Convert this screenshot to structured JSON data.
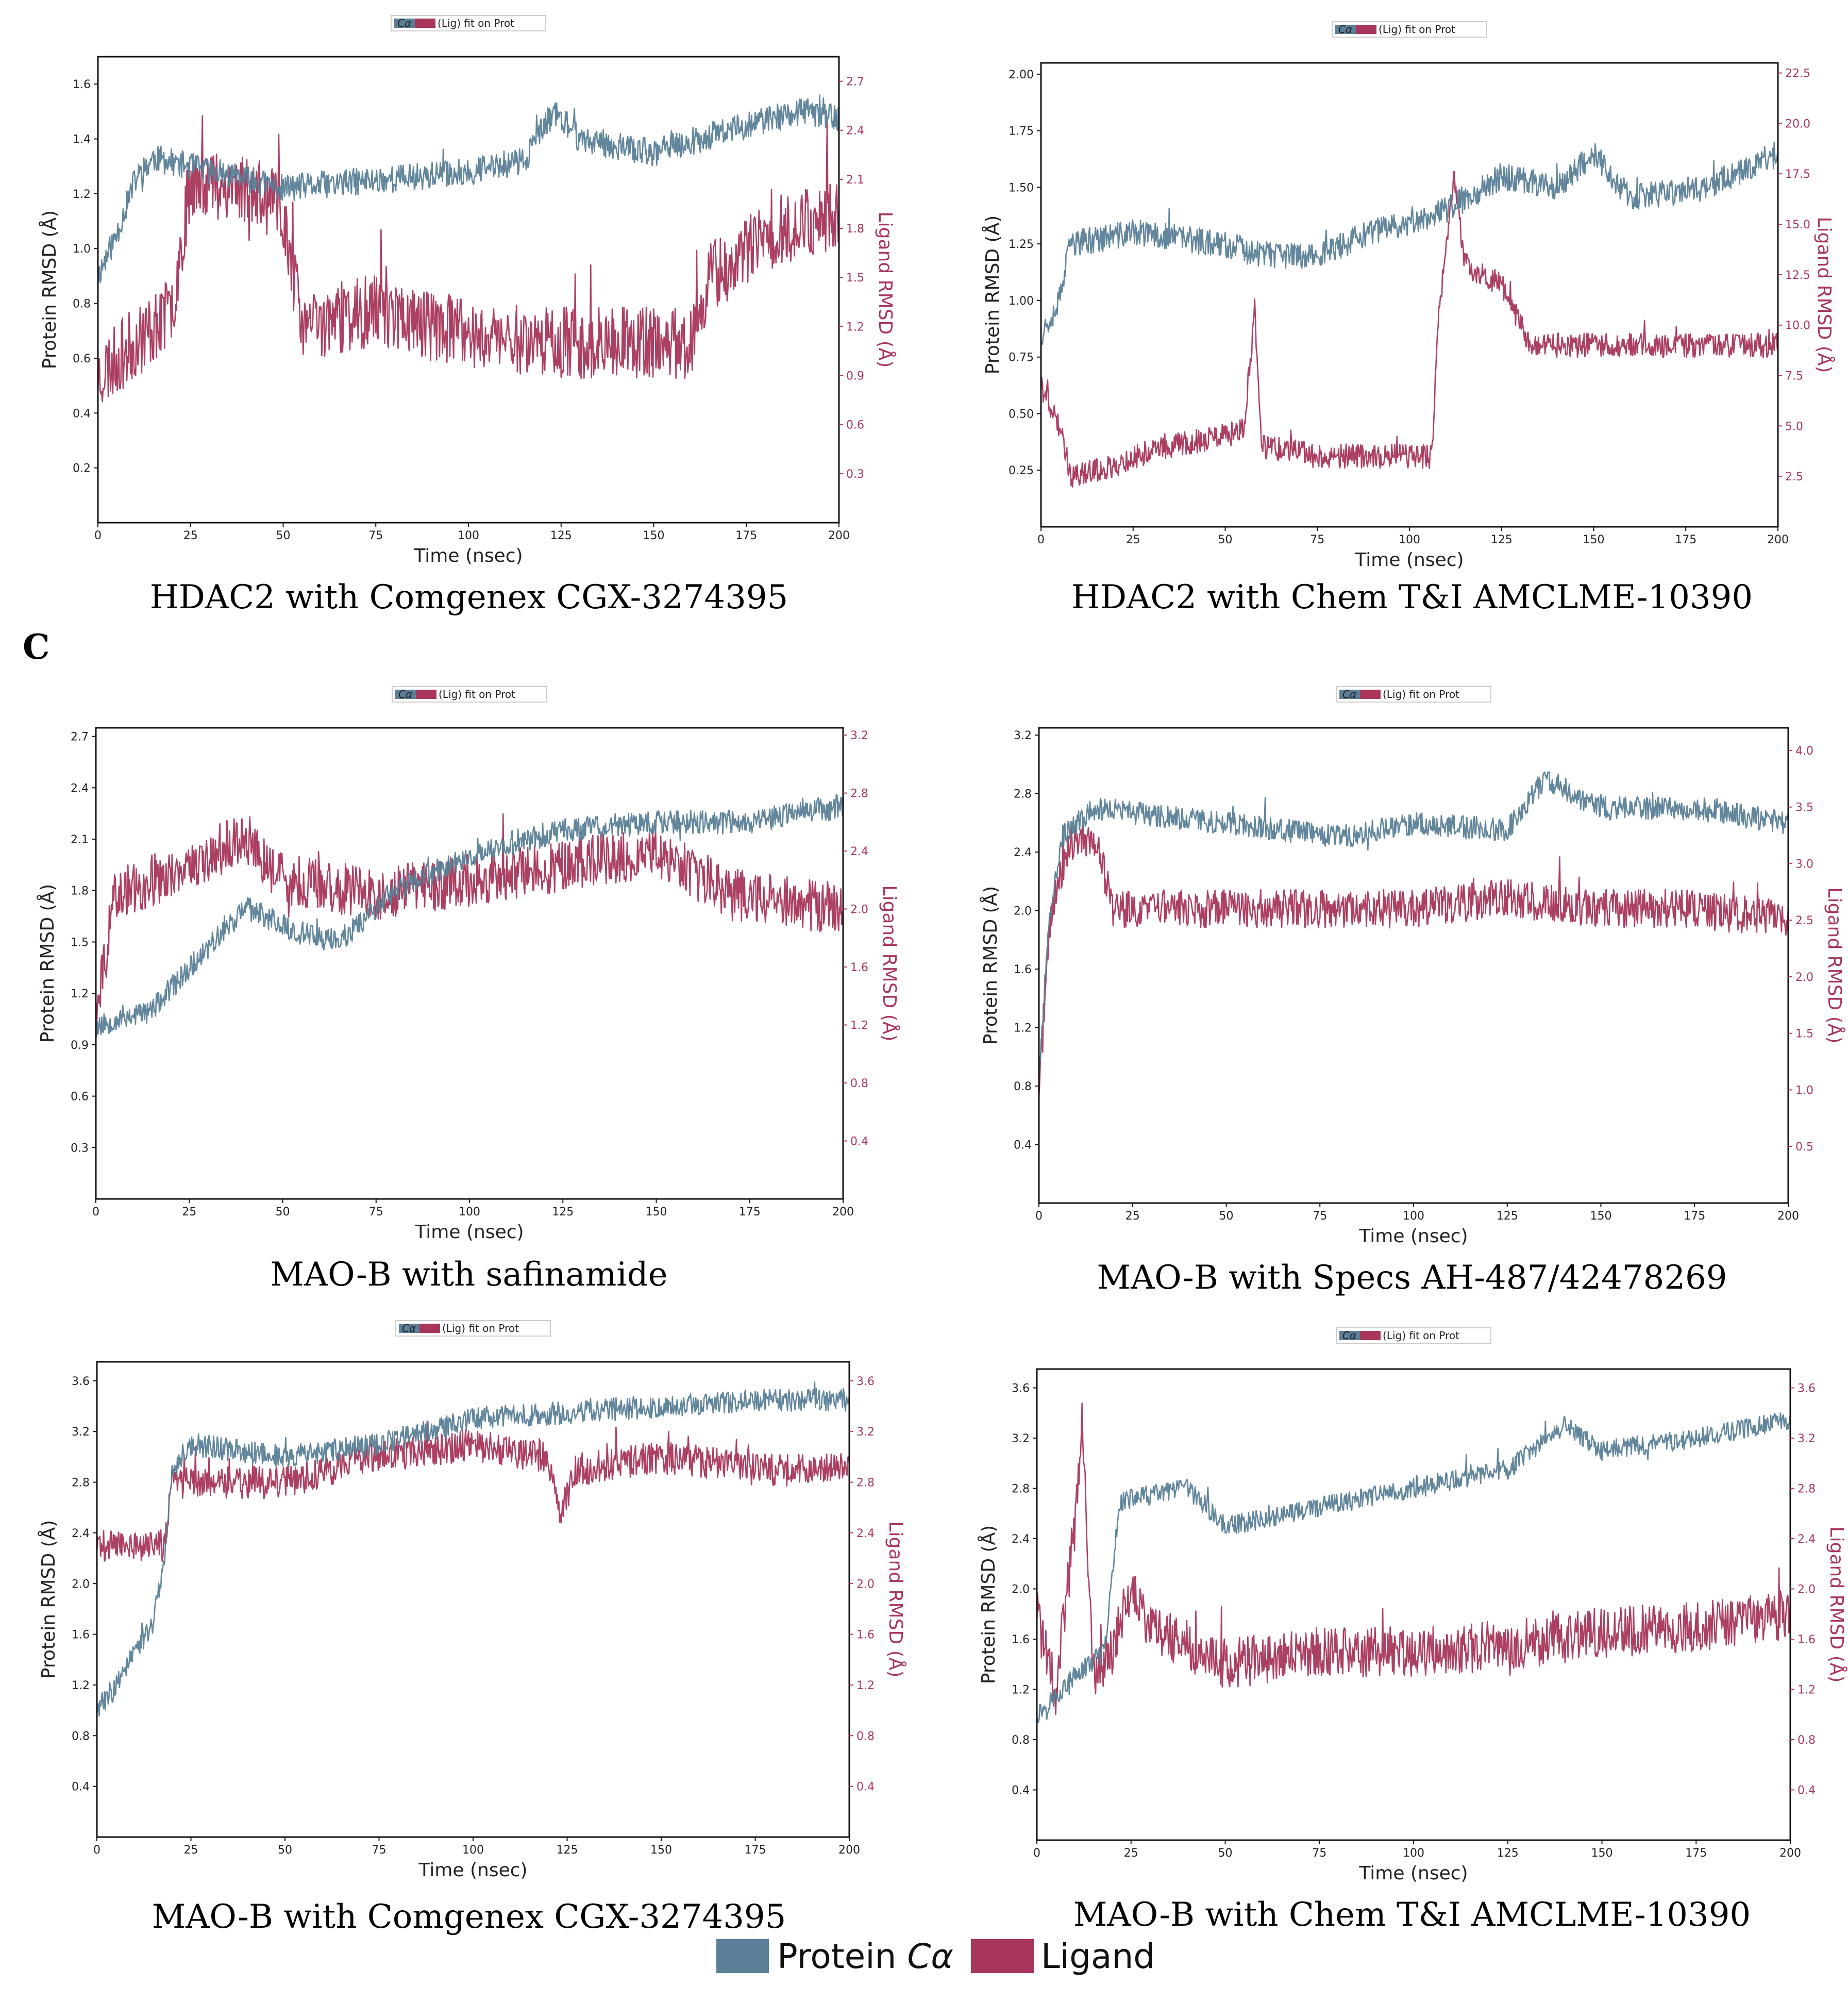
{
  "panel_letter": "C",
  "colors": {
    "protein": "#5a7f97",
    "ligand": "#a8365a"
  },
  "bottom_legend": {
    "protein_label": "Protein",
    "protein_sub": "Cα",
    "ligand_label": "Ligand"
  },
  "chart_data": [
    {
      "type": "line",
      "caption": "HDAC2 with Comgenex CGX-3274395",
      "legend_text": "(Lig) fit on Prot",
      "legend_sub": "Cα",
      "xlabel": "Time (nsec)",
      "ylabel": "Protein RMSD (Å)",
      "y2label": "Ligand RMSD (Å)",
      "xlim": [
        0,
        200
      ],
      "xticks": [
        0,
        25,
        50,
        75,
        100,
        125,
        150,
        175,
        200
      ],
      "ylim": [
        0,
        1.7
      ],
      "yticks": [
        "0.2",
        "0.4",
        "0.6",
        "0.8",
        "1.0",
        "1.2",
        "1.4",
        "1.6"
      ],
      "y2lim": [
        0,
        2.85
      ],
      "y2ticks": [
        "0.3",
        "0.6",
        "0.9",
        "1.2",
        "1.5",
        "1.8",
        "2.1",
        "2.4",
        "2.7"
      ],
      "series": [
        {
          "name": "Protein Cα",
          "axis": "left",
          "noise": 0.05,
          "seed": 11,
          "keypoints": [
            [
              0,
              0.9
            ],
            [
              5,
              1.05
            ],
            [
              10,
              1.25
            ],
            [
              15,
              1.33
            ],
            [
              25,
              1.3
            ],
            [
              50,
              1.22
            ],
            [
              75,
              1.25
            ],
            [
              100,
              1.28
            ],
            [
              115,
              1.32
            ],
            [
              123,
              1.5
            ],
            [
              130,
              1.4
            ],
            [
              150,
              1.35
            ],
            [
              175,
              1.45
            ],
            [
              190,
              1.5
            ],
            [
              200,
              1.48
            ]
          ]
        },
        {
          "name": "Ligand",
          "axis": "right",
          "noise": 0.22,
          "seed": 23,
          "keypoints": [
            [
              0,
              0.9
            ],
            [
              10,
              1.1
            ],
            [
              20,
              1.3
            ],
            [
              25,
              2.1
            ],
            [
              40,
              2.05
            ],
            [
              50,
              1.9
            ],
            [
              55,
              1.2
            ],
            [
              75,
              1.3
            ],
            [
              100,
              1.15
            ],
            [
              130,
              1.1
            ],
            [
              160,
              1.1
            ],
            [
              165,
              1.5
            ],
            [
              185,
              1.8
            ],
            [
              200,
              1.9
            ]
          ]
        }
      ]
    },
    {
      "type": "line",
      "caption": "HDAC2 with Chem T&I AMCLME-10390",
      "legend_text": "(Lig) fit on Prot",
      "legend_sub": "Cα",
      "xlabel": "Time (nsec)",
      "ylabel": "Protein RMSD (Å)",
      "y2label": "Ligand RMSD (Å)",
      "xlim": [
        0,
        200
      ],
      "xticks": [
        0,
        25,
        50,
        75,
        100,
        125,
        150,
        175,
        200
      ],
      "ylim": [
        0,
        2.05
      ],
      "yticks": [
        "0.25",
        "0.50",
        "0.75",
        "1.00",
        "1.25",
        "1.50",
        "1.75",
        "2.00"
      ],
      "y2lim": [
        0,
        23
      ],
      "y2ticks": [
        "2.5",
        "5.0",
        "7.5",
        "10.0",
        "12.5",
        "15.0",
        "17.5",
        "20.0",
        "22.5"
      ],
      "series": [
        {
          "name": "Protein Cα",
          "axis": "left",
          "noise": 0.06,
          "seed": 37,
          "keypoints": [
            [
              0,
              0.85
            ],
            [
              5,
              1.0
            ],
            [
              8,
              1.25
            ],
            [
              25,
              1.3
            ],
            [
              50,
              1.25
            ],
            [
              60,
              1.2
            ],
            [
              75,
              1.2
            ],
            [
              90,
              1.3
            ],
            [
              110,
              1.4
            ],
            [
              125,
              1.55
            ],
            [
              140,
              1.5
            ],
            [
              150,
              1.65
            ],
            [
              160,
              1.45
            ],
            [
              180,
              1.5
            ],
            [
              200,
              1.65
            ]
          ]
        },
        {
          "name": "Ligand",
          "axis": "right",
          "noise": 0.6,
          "seed": 41,
          "keypoints": [
            [
              0,
              7.0
            ],
            [
              5,
              5.0
            ],
            [
              8,
              2.5
            ],
            [
              20,
              3.0
            ],
            [
              30,
              3.8
            ],
            [
              50,
              4.5
            ],
            [
              55,
              4.8
            ],
            [
              58,
              10.5
            ],
            [
              60,
              4.0
            ],
            [
              75,
              3.5
            ],
            [
              100,
              3.5
            ],
            [
              106,
              3.5
            ],
            [
              108,
              10.5
            ],
            [
              112,
              17.5
            ],
            [
              115,
              13.0
            ],
            [
              125,
              12.0
            ],
            [
              133,
              9.0
            ],
            [
              150,
              9.0
            ],
            [
              175,
              9.0
            ],
            [
              200,
              9.0
            ]
          ]
        }
      ]
    },
    {
      "type": "line",
      "caption": "MAO-B with safinamide",
      "legend_text": "(Lig) fit on Prot",
      "legend_sub": "Cα",
      "xlabel": "Time (nsec)",
      "ylabel": "Protein RMSD (Å)",
      "y2label": "Ligand RMSD (Å)",
      "xlim": [
        0,
        200
      ],
      "xticks": [
        0,
        25,
        50,
        75,
        100,
        125,
        150,
        175,
        200
      ],
      "ylim": [
        0,
        2.75
      ],
      "yticks": [
        "0.3",
        "0.6",
        "0.9",
        "1.2",
        "1.5",
        "1.8",
        "2.1",
        "2.4",
        "2.7"
      ],
      "y2lim": [
        0,
        3.25
      ],
      "y2ticks": [
        "0.4",
        "0.8",
        "1.2",
        "1.6",
        "2.0",
        "2.4",
        "2.8",
        "3.2"
      ],
      "series": [
        {
          "name": "Protein Cα",
          "axis": "left",
          "noise": 0.07,
          "seed": 53,
          "keypoints": [
            [
              0,
              1.0
            ],
            [
              5,
              1.05
            ],
            [
              15,
              1.1
            ],
            [
              25,
              1.35
            ],
            [
              40,
              1.7
            ],
            [
              55,
              1.55
            ],
            [
              65,
              1.5
            ],
            [
              80,
              1.8
            ],
            [
              100,
              2.0
            ],
            [
              125,
              2.15
            ],
            [
              150,
              2.2
            ],
            [
              175,
              2.2
            ],
            [
              200,
              2.3
            ]
          ]
        },
        {
          "name": "Ligand",
          "axis": "right",
          "noise": 0.18,
          "seed": 59,
          "keypoints": [
            [
              0,
              1.2
            ],
            [
              5,
              2.1
            ],
            [
              25,
              2.3
            ],
            [
              40,
              2.5
            ],
            [
              50,
              2.2
            ],
            [
              75,
              2.1
            ],
            [
              100,
              2.2
            ],
            [
              125,
              2.3
            ],
            [
              150,
              2.4
            ],
            [
              170,
              2.1
            ],
            [
              200,
              2.0
            ]
          ]
        }
      ]
    },
    {
      "type": "line",
      "caption": "MAO-B with Specs AH-487/42478269",
      "legend_text": "(Lig) fit on Prot",
      "legend_sub": "Cα",
      "xlabel": "Time (nsec)",
      "ylabel": "Protein RMSD (Å)",
      "y2label": "Ligand RMSD (Å)",
      "xlim": [
        0,
        200
      ],
      "xticks": [
        0,
        25,
        50,
        75,
        100,
        125,
        150,
        175,
        200
      ],
      "ylim": [
        0,
        3.25
      ],
      "yticks": [
        "0.4",
        "0.8",
        "1.2",
        "1.6",
        "2.0",
        "2.4",
        "2.8",
        "3.2"
      ],
      "y2lim": [
        0,
        4.2
      ],
      "y2ticks": [
        "0.5",
        "1.0",
        "1.5",
        "2.0",
        "2.5",
        "3.0",
        "3.5",
        "4.0"
      ],
      "series": [
        {
          "name": "Protein Cα",
          "axis": "left",
          "noise": 0.08,
          "seed": 67,
          "keypoints": [
            [
              0,
              0.9
            ],
            [
              3,
              2.0
            ],
            [
              6,
              2.5
            ],
            [
              15,
              2.7
            ],
            [
              50,
              2.6
            ],
            [
              80,
              2.5
            ],
            [
              100,
              2.6
            ],
            [
              125,
              2.55
            ],
            [
              135,
              2.9
            ],
            [
              150,
              2.7
            ],
            [
              175,
              2.7
            ],
            [
              200,
              2.6
            ]
          ]
        },
        {
          "name": "Ligand",
          "axis": "right",
          "noise": 0.17,
          "seed": 71,
          "keypoints": [
            [
              0,
              1.0
            ],
            [
              3,
              2.5
            ],
            [
              8,
              3.2
            ],
            [
              15,
              3.2
            ],
            [
              20,
              2.6
            ],
            [
              50,
              2.6
            ],
            [
              75,
              2.6
            ],
            [
              100,
              2.6
            ],
            [
              125,
              2.7
            ],
            [
              150,
              2.6
            ],
            [
              175,
              2.6
            ],
            [
              200,
              2.5
            ]
          ]
        }
      ]
    },
    {
      "type": "line",
      "caption": "MAO-B with Comgenex CGX-3274395",
      "legend_text": "(Lig) fit on Prot",
      "legend_sub": "Cα",
      "xlabel": "Time (nsec)",
      "ylabel": "Protein RMSD (Å)",
      "y2label": "Ligand RMSD (Å)",
      "xlim": [
        0,
        200
      ],
      "xticks": [
        0,
        25,
        50,
        75,
        100,
        125,
        150,
        175,
        200
      ],
      "ylim": [
        0,
        3.75
      ],
      "yticks": [
        "0.4",
        "0.8",
        "1.2",
        "1.6",
        "2.0",
        "2.4",
        "2.8",
        "3.2",
        "3.6"
      ],
      "y2lim": [
        0,
        3.75
      ],
      "y2ticks": [
        "0.4",
        "0.8",
        "1.2",
        "1.6",
        "2.0",
        "2.4",
        "2.8",
        "3.2",
        "3.6"
      ],
      "series": [
        {
          "name": "Protein Cα",
          "axis": "left",
          "noise": 0.09,
          "seed": 83,
          "keypoints": [
            [
              0,
              1.0
            ],
            [
              5,
              1.2
            ],
            [
              15,
              1.7
            ],
            [
              18,
              2.2
            ],
            [
              20,
              2.9
            ],
            [
              25,
              3.1
            ],
            [
              50,
              3.0
            ],
            [
              75,
              3.1
            ],
            [
              100,
              3.3
            ],
            [
              125,
              3.35
            ],
            [
              150,
              3.4
            ],
            [
              175,
              3.45
            ],
            [
              200,
              3.45
            ]
          ]
        },
        {
          "name": "Ligand",
          "axis": "right",
          "noise": 0.13,
          "seed": 89,
          "keypoints": [
            [
              0,
              2.3
            ],
            [
              18,
              2.3
            ],
            [
              20,
              2.8
            ],
            [
              50,
              2.8
            ],
            [
              75,
              3.0
            ],
            [
              100,
              3.1
            ],
            [
              120,
              3.0
            ],
            [
              123,
              2.5
            ],
            [
              127,
              2.9
            ],
            [
              150,
              3.0
            ],
            [
              175,
              2.9
            ],
            [
              200,
              2.9
            ]
          ]
        }
      ]
    },
    {
      "type": "line",
      "caption": "MAO-B with Chem T&I AMCLME-10390",
      "legend_text": "(Lig) fit on Prot",
      "legend_sub": "Cα",
      "xlabel": "Time (nsec)",
      "ylabel": "Protein RMSD (Å)",
      "y2label": "Ligand RMSD (Å)",
      "xlim": [
        0,
        200
      ],
      "xticks": [
        0,
        25,
        50,
        75,
        100,
        125,
        150,
        175,
        200
      ],
      "ylim": [
        0,
        3.75
      ],
      "yticks": [
        "0.4",
        "0.8",
        "1.2",
        "1.6",
        "2.0",
        "2.4",
        "2.8",
        "3.2",
        "3.6"
      ],
      "y2lim": [
        0,
        3.75
      ],
      "y2ticks": [
        "0.4",
        "0.8",
        "1.2",
        "1.6",
        "2.0",
        "2.4",
        "2.8",
        "3.2",
        "3.6"
      ],
      "series": [
        {
          "name": "Protein Cα",
          "axis": "left",
          "noise": 0.08,
          "seed": 97,
          "keypoints": [
            [
              0,
              1.0
            ],
            [
              10,
              1.3
            ],
            [
              18,
              1.5
            ],
            [
              22,
              2.7
            ],
            [
              40,
              2.8
            ],
            [
              50,
              2.5
            ],
            [
              75,
              2.65
            ],
            [
              100,
              2.8
            ],
            [
              125,
              2.95
            ],
            [
              140,
              3.3
            ],
            [
              150,
              3.1
            ],
            [
              175,
              3.2
            ],
            [
              200,
              3.35
            ]
          ]
        },
        {
          "name": "Ligand",
          "axis": "right",
          "noise": 0.2,
          "seed": 101,
          "keypoints": [
            [
              0,
              1.8
            ],
            [
              5,
              1.2
            ],
            [
              10,
              2.5
            ],
            [
              12,
              3.3
            ],
            [
              15,
              1.3
            ],
            [
              20,
              1.5
            ],
            [
              25,
              2.0
            ],
            [
              30,
              1.7
            ],
            [
              50,
              1.4
            ],
            [
              75,
              1.5
            ],
            [
              100,
              1.5
            ],
            [
              125,
              1.55
            ],
            [
              150,
              1.65
            ],
            [
              175,
              1.7
            ],
            [
              200,
              1.8
            ]
          ]
        }
      ]
    }
  ]
}
